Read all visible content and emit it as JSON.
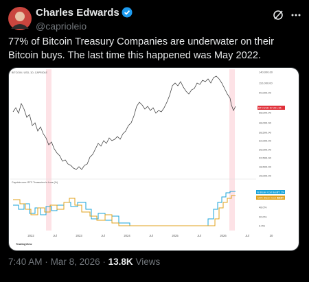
{
  "author": {
    "name": "Charles Edwards",
    "handle": "@caprioleio"
  },
  "post": {
    "text": "77% of Bitcoin Treasury Companies are underwater on their Bitcoin buys. The last time this happened was May 2022."
  },
  "chart_image": {
    "header": "BITCOIN / USD, 1D, CAPRIOLE",
    "price_axis": [
      "140,000.00",
      "110,000.00",
      "90,000.00",
      "58,000.00",
      "48,000.00",
      "38,500.00",
      "32,000.00",
      "26,000.00",
      "22,500.00",
      "18,500.00",
      "15,000.00"
    ],
    "price_label": "BTCUSD 67,201.36",
    "pane_title": "Capriole.com: BTC Treasuries in Loss (%)",
    "legend": [
      {
        "name": "% Bitcoin Cost Basis",
        "value": "72.2%"
      },
      {
        "name": "<25% Bitcoin Cost Basis",
        "value": "65.8%"
      }
    ],
    "pane_axis": [
      "48.0%",
      "20.0%",
      "2.0%"
    ],
    "time_axis": [
      "2022",
      "Jul",
      "2023",
      "Jul",
      "2024",
      "Jul",
      "2025",
      "Jul",
      "2026",
      "Jul",
      "20"
    ],
    "brand": "TradingView"
  },
  "meta": {
    "timestamp": "7:40 AM",
    "date": "Mar 8, 2026",
    "separator": "·",
    "views": "13.8K",
    "views_label": "Views"
  }
}
